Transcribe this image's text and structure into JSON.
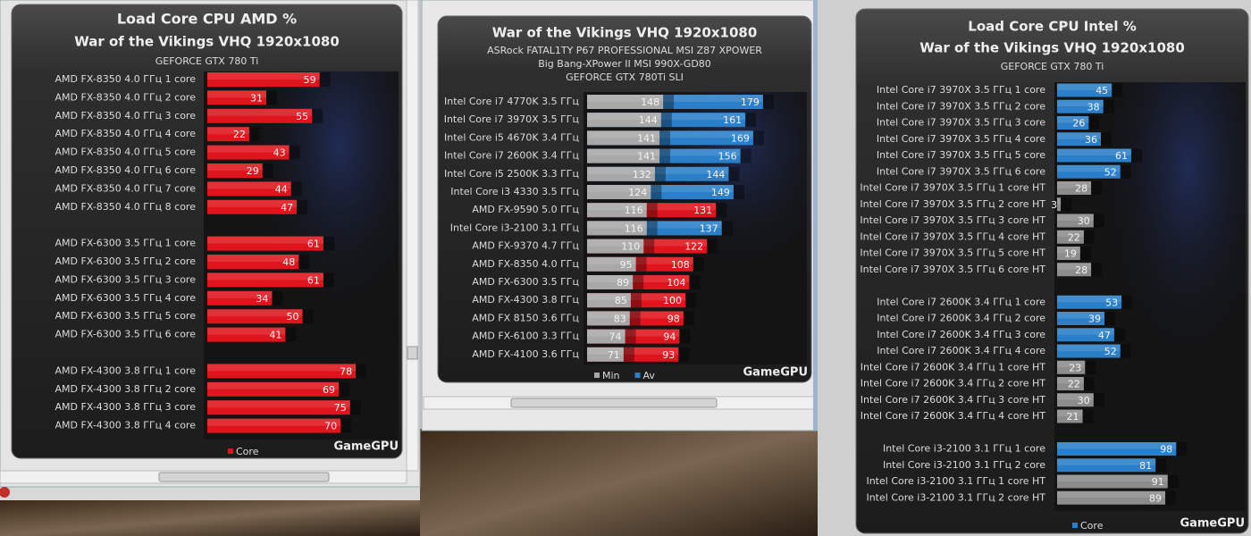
{
  "chart_data": [
    {
      "type": "bar",
      "orientation": "horizontal",
      "title": "Load Core CPU AMD %",
      "subtitles": [
        "War of the Vikings VHQ 1920x1080",
        "GEFORCE GTX 780 Ti"
      ],
      "categories": [
        "AMD FX-8350 4.0 ГГц 1 core",
        "AMD FX-8350 4.0 ГГц 2 core",
        "AMD FX-8350 4.0 ГГц 3 core",
        "AMD FX-8350 4.0 ГГц 4 core",
        "AMD FX-8350 4.0 ГГц 5 core",
        "AMD FX-8350 4.0 ГГц 6 core",
        "AMD FX-8350 4.0 ГГц 7 core",
        "AMD FX-8350 4.0 ГГц 8 core",
        null,
        "AMD FX-6300 3.5 ГГц 1 core",
        "AMD FX-6300 3.5 ГГц 2 core",
        "AMD FX-6300 3.5 ГГц 3 core",
        "AMD FX-6300 3.5 ГГц 4 core",
        "AMD FX-6300 3.5 ГГц 5 core",
        "AMD FX-6300 3.5 ГГц 6 core",
        null,
        "AMD FX-4300 3.8 ГГц 1 core",
        "AMD FX-4300 3.8 ГГц 2 core",
        "AMD FX-4300 3.8 ГГц 3 core",
        "AMD FX-4300 3.8 ГГц 4 core"
      ],
      "series": [
        {
          "name": "Core",
          "color": "#e0141c",
          "values": [
            59,
            31,
            55,
            22,
            43,
            29,
            44,
            47,
            null,
            61,
            48,
            61,
            34,
            50,
            41,
            null,
            78,
            69,
            75,
            70
          ]
        }
      ],
      "source": "GameGPU"
    },
    {
      "type": "bar",
      "orientation": "horizontal",
      "title": "War of the Vikings VHQ 1920x1080",
      "subtitles": [
        "ASRock FATAL1TY P67 PROFESSIONAL MSI Z87 XPOWER",
        "Big Bang-XPower II MSI 990X-GD80",
        "GEFORCE GTX 780Ti SLI"
      ],
      "categories": [
        "Intel Core i7 4770K 3.5 ГГц",
        "Intel Core i7 3970X 3.5 ГГц",
        "Intel Core i5 4670K 3.4 ГГц",
        "Intel Core i7 2600K 3.4 ГГц",
        "Intel Core i5 2500K 3.3 ГГц",
        "Intel Core i3 4330 3.5 ГГц",
        "AMD FX-9590 5.0 ГГц",
        "Intel Core i3-2100 3.1 ГГц",
        "AMD FX-9370 4.7 ГГц",
        "AMD FX-8350 4.0 ГГц",
        "AMD FX-6300 3.5 ГГц",
        "AMD FX-4300 3.8 ГГц",
        "AMD FX 8150 3.6 ГГц",
        "AMD FX-6100 3.3 ГГц",
        "AMD FX-4100 3.6 ГГц"
      ],
      "series": [
        {
          "name": "Min",
          "color": "#a8a8a8",
          "values": [
            148,
            144,
            141,
            141,
            132,
            124,
            116,
            116,
            110,
            95,
            89,
            85,
            83,
            74,
            71
          ]
        },
        {
          "name": "Av",
          "color": "#8a8a8a",
          "colors": [
            "#2a7fc8",
            "#2a7fc8",
            "#2a7fc8",
            "#2a7fc8",
            "#2a7fc8",
            "#2a7fc8",
            "#e0141c",
            "#2a7fc8",
            "#e0141c",
            "#e0141c",
            "#e0141c",
            "#e0141c",
            "#e0141c",
            "#e0141c",
            "#e0141c"
          ],
          "values": [
            179,
            161,
            169,
            156,
            144,
            149,
            131,
            137,
            122,
            108,
            104,
            100,
            98,
            94,
            93
          ]
        }
      ],
      "source": "GameGPU"
    },
    {
      "type": "bar",
      "orientation": "horizontal",
      "title": "Load Core CPU Intel %",
      "subtitles": [
        "War of the Vikings VHQ 1920x1080",
        "GEFORCE GTX 780 Ti"
      ],
      "categories": [
        "Intel Core i7 3970X 3.5 ГГц 1 core",
        "Intel Core i7 3970X 3.5 ГГц 2 core",
        "Intel Core i7 3970X 3.5 ГГц 3 core",
        "Intel Core i7 3970X 3.5 ГГц 4 core",
        "Intel Core i7 3970X 3.5 ГГц 5 core",
        "Intel Core i7 3970X 3.5 ГГц 6 core",
        "Intel Core i7 3970X 3.5 ГГц 1 core HT",
        "Intel Core i7 3970X 3.5 ГГц 2 core HT",
        "Intel Core i7 3970X 3.5 ГГц 3 core HT",
        "Intel Core i7 3970X 3.5 ГГц 4 core HT",
        "Intel Core i7 3970X 3.5 ГГц 5 core HT",
        "Intel Core i7 3970X 3.5 ГГц 6 core HT",
        null,
        "Intel Core i7 2600K 3.4 ГГц 1 core",
        "Intel Core i7 2600K 3.4 ГГц 2 core",
        "Intel Core i7 2600K 3.4 ГГц 3 core",
        "Intel Core i7 2600K 3.4 ГГц 4 core",
        "Intel Core i7 2600K 3.4 ГГц 1 core HT",
        "Intel Core i7 2600K 3.4 ГГц 2 core HT",
        "Intel Core i7 2600K 3.4 ГГц 3 core HT",
        "Intel Core i7 2600K 3.4 ГГц 4 core HT",
        null,
        "Intel Core i3-2100 3.1 ГГц 1 core",
        "Intel Core i3-2100 3.1 ГГц 2 core",
        "Intel Core i3-2100 3.1 ГГц 1 core HT",
        "Intel Core i3-2100 3.1 ГГц 2 core HT"
      ],
      "series": [
        {
          "name": "Core",
          "color": "#2a7fc8",
          "colors": [
            "#2a7fc8",
            "#2a7fc8",
            "#2a7fc8",
            "#2a7fc8",
            "#2a7fc8",
            "#2a7fc8",
            "#8c8c8c",
            "#8c8c8c",
            "#8c8c8c",
            "#8c8c8c",
            "#8c8c8c",
            "#8c8c8c",
            null,
            "#2a7fc8",
            "#2a7fc8",
            "#2a7fc8",
            "#2a7fc8",
            "#8c8c8c",
            "#8c8c8c",
            "#8c8c8c",
            "#8c8c8c",
            null,
            "#2a7fc8",
            "#2a7fc8",
            "#8c8c8c",
            "#8c8c8c"
          ],
          "values": [
            45,
            38,
            26,
            36,
            61,
            52,
            28,
            3,
            30,
            22,
            19,
            28,
            null,
            53,
            39,
            47,
            52,
            23,
            22,
            30,
            21,
            null,
            98,
            81,
            91,
            89
          ]
        }
      ],
      "source": "GameGPU"
    }
  ]
}
